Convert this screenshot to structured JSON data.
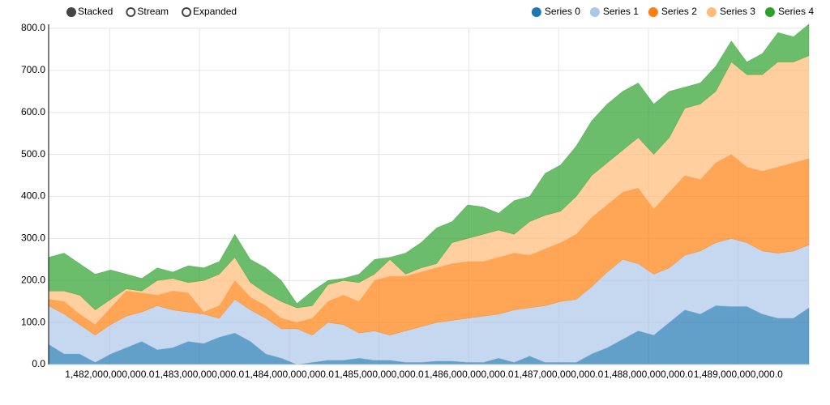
{
  "chart_data": {
    "type": "stacked_area",
    "controls": [
      "Stacked",
      "Stream",
      "Expanded"
    ],
    "selected_control": 0,
    "legend_position": "top-right",
    "grid": true,
    "x": [
      1481320000000,
      1481492800000,
      1481665600000,
      1481838400000,
      1482011200000,
      1482184000000,
      1482356800000,
      1482529600000,
      1482702400000,
      1482875200000,
      1483048000000,
      1483220800000,
      1483393600000,
      1483566400000,
      1483739200000,
      1483912000000,
      1484084800000,
      1484257600000,
      1484430400000,
      1484603200000,
      1484776000000,
      1484948800000,
      1485121600000,
      1485294400000,
      1485467200000,
      1485640000000,
      1485812800000,
      1485985600000,
      1486158400000,
      1486331200000,
      1486504000000,
      1486676800000,
      1486849600000,
      1487022400000,
      1487195200000,
      1487368000000,
      1487540800000,
      1487713600000,
      1487886400000,
      1488059200000,
      1488232000000,
      1488404800000,
      1488577600000,
      1488750400000,
      1488923200000,
      1489096000000,
      1489268800000,
      1489441600000,
      1489614400000,
      1489787200000
    ],
    "xlim": [
      1481320000000,
      1489787200000
    ],
    "xticks": [
      {
        "value": 1482000000000,
        "label": "1,482,000,000,000.0"
      },
      {
        "value": 1483000000000,
        "label": "1,483,000,000,000.0"
      },
      {
        "value": 1484000000000,
        "label": "1,484,000,000,000.0"
      },
      {
        "value": 1485000000000,
        "label": "1,485,000,000,000.0"
      },
      {
        "value": 1486000000000,
        "label": "1,486,000,000,000.0"
      },
      {
        "value": 1487000000000,
        "label": "1,487,000,000,000.0"
      },
      {
        "value": 1488000000000,
        "label": "1,488,000,000,000.0"
      },
      {
        "value": 1489000000000,
        "label": "1,489,000,000,000.0"
      }
    ],
    "ylim": [
      0,
      800
    ],
    "yticks": [
      {
        "value": 0,
        "label": "0.0"
      },
      {
        "value": 100,
        "label": "100.0"
      },
      {
        "value": 200,
        "label": "200.0"
      },
      {
        "value": 300,
        "label": "300.0"
      },
      {
        "value": 400,
        "label": "400.0"
      },
      {
        "value": 500,
        "label": "500.0"
      },
      {
        "value": 600,
        "label": "600.0"
      },
      {
        "value": 700,
        "label": "700.0"
      },
      {
        "value": 800,
        "label": "800.0"
      }
    ],
    "series": [
      {
        "name": "Series 0",
        "color": "#1f77b4",
        "values": [
          48,
          25,
          25,
          5,
          25,
          40,
          55,
          35,
          40,
          55,
          50,
          65,
          75,
          55,
          25,
          15,
          0,
          5,
          10,
          10,
          15,
          10,
          10,
          5,
          5,
          8,
          8,
          5,
          5,
          15,
          5,
          20,
          5,
          5,
          5,
          25,
          40,
          60,
          80,
          70,
          100,
          130,
          120,
          140,
          138,
          138,
          120,
          110,
          110,
          135
        ]
      },
      {
        "name": "Series 1",
        "color": "#aec7e8",
        "values": [
          92,
          95,
          70,
          65,
          70,
          75,
          70,
          105,
          90,
          70,
          70,
          45,
          80,
          75,
          85,
          70,
          85,
          65,
          90,
          85,
          60,
          70,
          60,
          75,
          85,
          92,
          97,
          105,
          110,
          105,
          125,
          115,
          135,
          145,
          150,
          160,
          180,
          190,
          160,
          145,
          130,
          130,
          150,
          150,
          162,
          152,
          150,
          155,
          160,
          150
        ]
      },
      {
        "name": "Series 2",
        "color": "#ff7f0e",
        "values": [
          15,
          30,
          25,
          25,
          40,
          60,
          45,
          25,
          45,
          45,
          5,
          30,
          45,
          30,
          30,
          25,
          15,
          40,
          50,
          70,
          75,
          120,
          140,
          130,
          130,
          130,
          135,
          135,
          130,
          135,
          135,
          125,
          135,
          140,
          155,
          165,
          160,
          160,
          180,
          155,
          180,
          190,
          170,
          190,
          200,
          180,
          190,
          205,
          210,
          205
        ]
      },
      {
        "name": "Series 3",
        "color": "#ffbb78",
        "values": [
          20,
          25,
          45,
          35,
          20,
          5,
          5,
          35,
          30,
          25,
          75,
          75,
          55,
          35,
          30,
          40,
          35,
          30,
          40,
          35,
          45,
          15,
          40,
          5,
          10,
          10,
          50,
          55,
          65,
          65,
          45,
          80,
          80,
          75,
          90,
          100,
          100,
          100,
          120,
          130,
          130,
          160,
          180,
          170,
          220,
          220,
          230,
          250,
          240,
          245
        ]
      },
      {
        "name": "Series 4",
        "color": "#2ca02c",
        "values": [
          80,
          90,
          75,
          85,
          70,
          35,
          30,
          30,
          15,
          40,
          30,
          30,
          55,
          55,
          60,
          50,
          10,
          35,
          10,
          5,
          20,
          35,
          5,
          50,
          60,
          85,
          50,
          80,
          65,
          40,
          80,
          60,
          100,
          110,
          120,
          130,
          140,
          140,
          130,
          120,
          110,
          50,
          50,
          60,
          50,
          30,
          50,
          70,
          60,
          75
        ]
      }
    ]
  }
}
